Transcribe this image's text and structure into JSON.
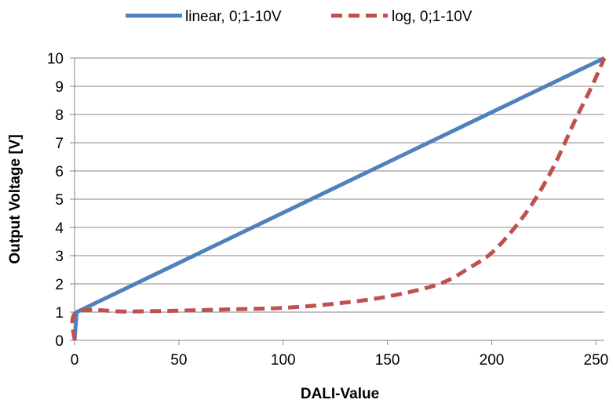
{
  "chart_data": {
    "type": "line",
    "title": "",
    "xlabel": "DALI-Value",
    "ylabel": "Output Voltage [V]",
    "xlim": [
      0,
      254
    ],
    "ylim": [
      0,
      10
    ],
    "x_ticks": [
      0,
      50,
      100,
      150,
      200,
      250
    ],
    "y_ticks": [
      0,
      1,
      2,
      3,
      4,
      5,
      6,
      7,
      8,
      9,
      10
    ],
    "grid": "horizontal",
    "legend_position": "top-center",
    "series": [
      {
        "name": "linear, 0;1-10V",
        "color": "#4f81bd",
        "line_style": "solid",
        "points": [
          [
            0,
            0
          ],
          [
            1,
            1.0
          ],
          [
            254,
            10.0
          ]
        ]
      },
      {
        "name": "log, 0;1-10V",
        "color": "#c0504d",
        "line_style": "dashed",
        "points": [
          [
            0,
            0
          ],
          [
            1,
            1.0
          ],
          [
            25,
            1.02
          ],
          [
            50,
            1.05
          ],
          [
            75,
            1.1
          ],
          [
            100,
            1.15
          ],
          [
            125,
            1.3
          ],
          [
            150,
            1.55
          ],
          [
            175,
            2.0
          ],
          [
            190,
            2.6
          ],
          [
            200,
            3.1
          ],
          [
            210,
            3.9
          ],
          [
            220,
            4.9
          ],
          [
            230,
            6.2
          ],
          [
            240,
            7.8
          ],
          [
            248,
            9.0
          ],
          [
            254,
            10.0
          ]
        ]
      }
    ]
  }
}
